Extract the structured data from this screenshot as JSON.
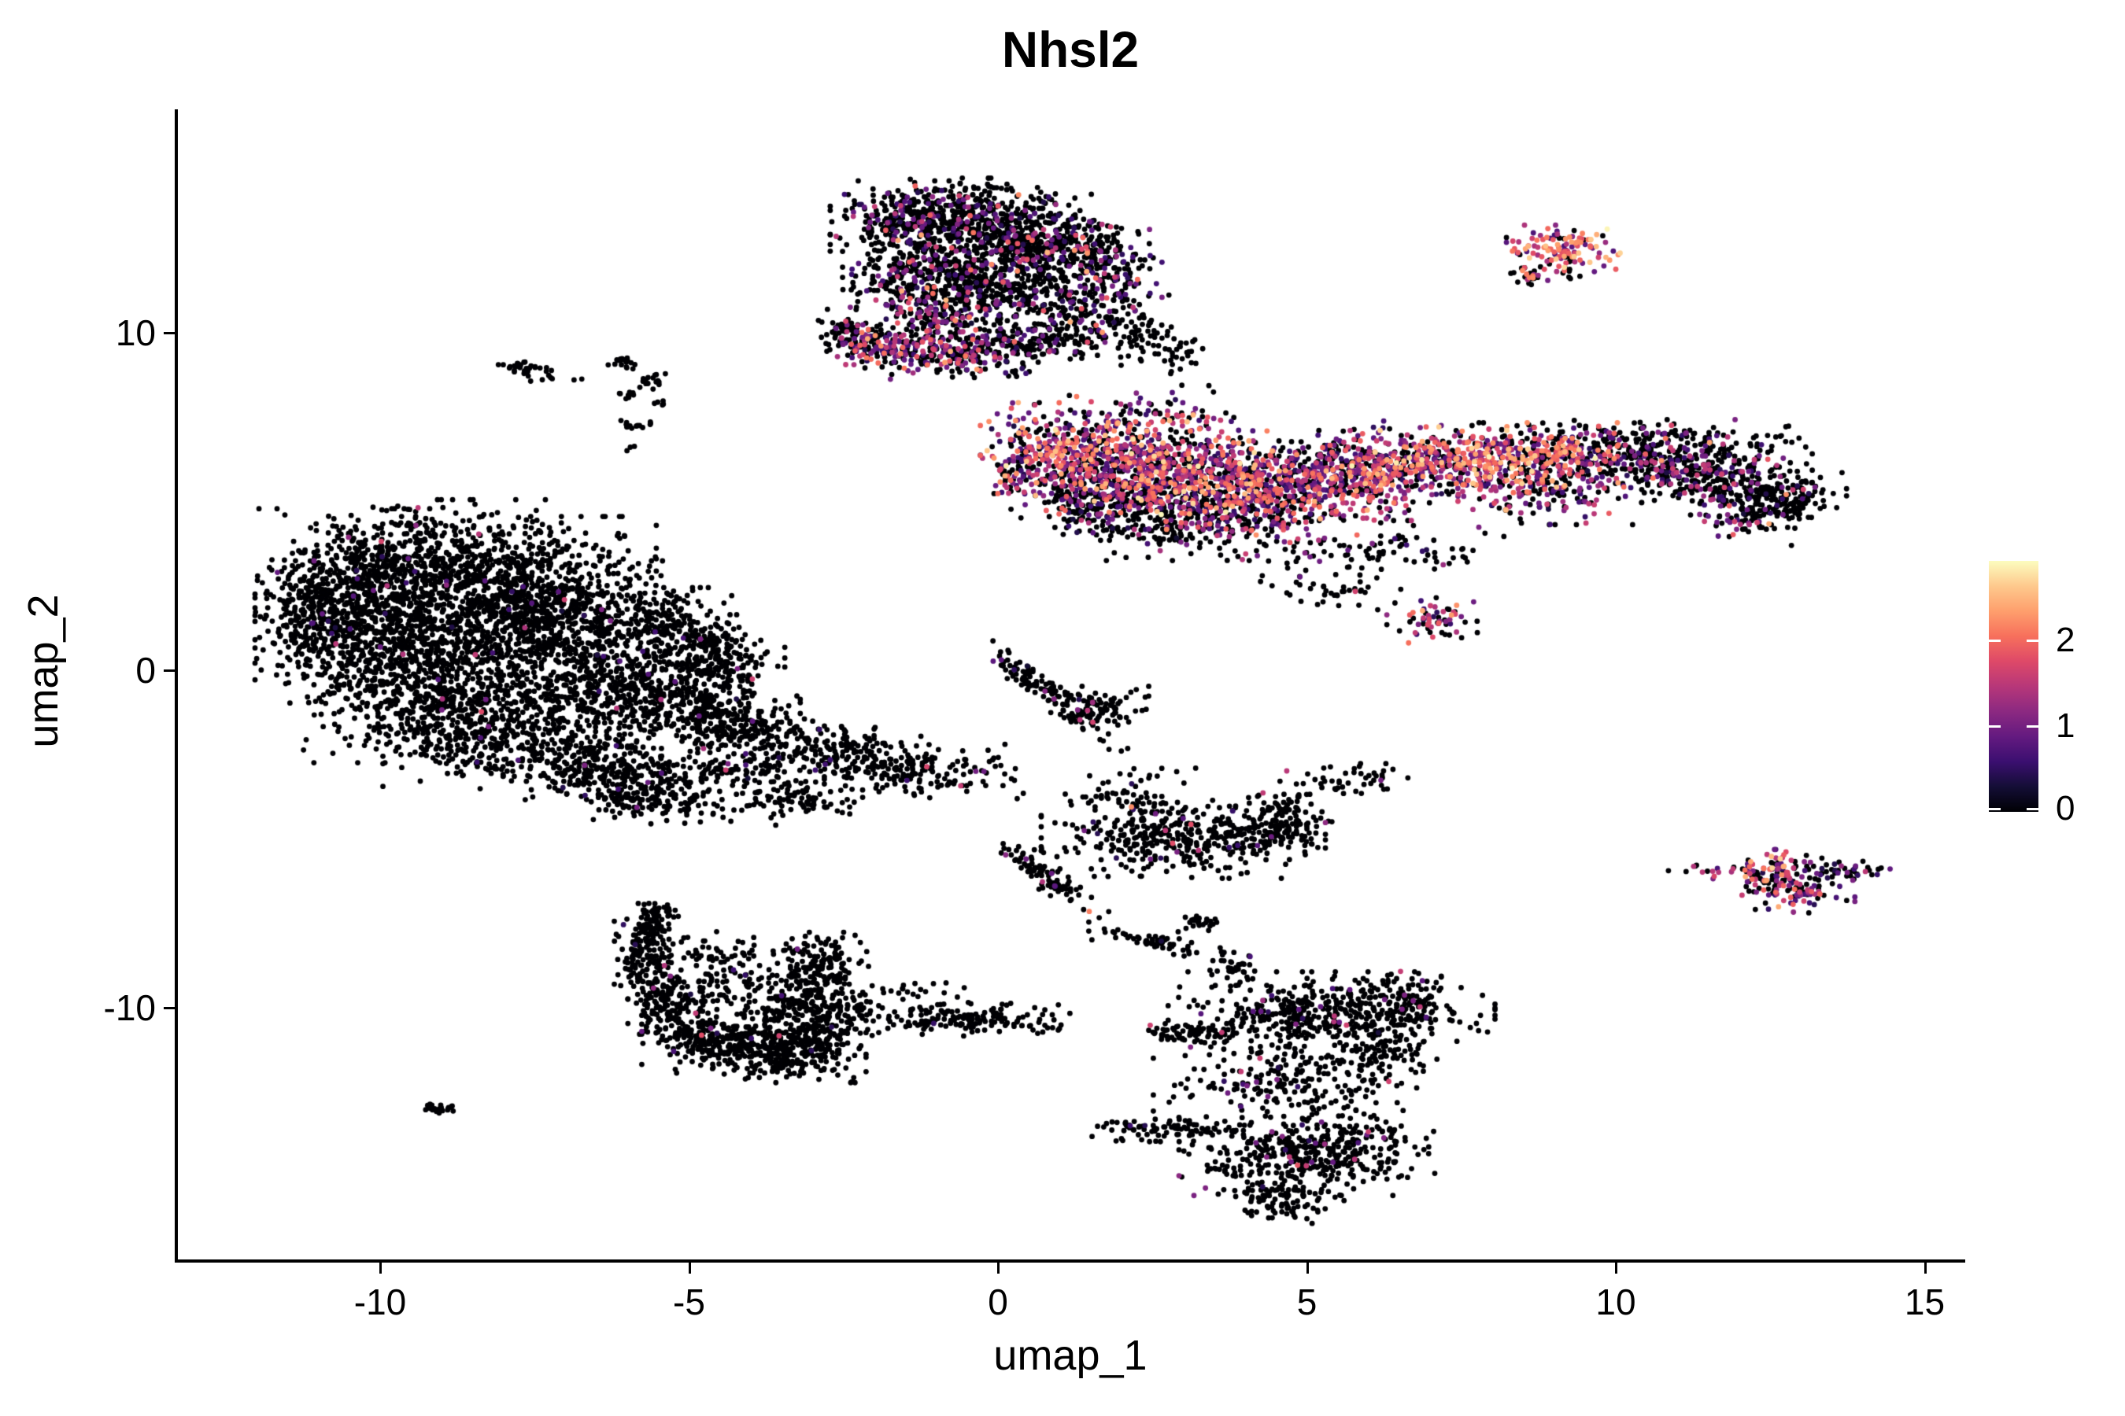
{
  "title": "Nhsl2",
  "axes": {
    "x": {
      "label": "umap_1",
      "ticks": [
        -10,
        -5,
        0,
        5,
        10,
        15
      ],
      "range": [
        -13.3,
        15.65
      ]
    },
    "y": {
      "label": "umap_2",
      "ticks": [
        10,
        0,
        -10
      ],
      "range": [
        -17.5,
        16.6
      ]
    }
  },
  "colorbar": {
    "ticks": [
      0,
      1,
      2
    ],
    "vmax": 2.92,
    "tick_color": "#ffffff",
    "stops": [
      [
        0.0,
        "#000004"
      ],
      [
        0.1,
        "#140E36"
      ],
      [
        0.2,
        "#3B0F70"
      ],
      [
        0.3,
        "#641A80"
      ],
      [
        0.4,
        "#8C2981"
      ],
      [
        0.5,
        "#B73779"
      ],
      [
        0.6,
        "#DE4968"
      ],
      [
        0.7,
        "#F7705C"
      ],
      [
        0.8,
        "#FE9F6D"
      ],
      [
        0.9,
        "#FEC98D"
      ],
      [
        1.0,
        "#FCFDBF"
      ]
    ]
  },
  "chart_data": {
    "type": "scatter",
    "title": "Nhsl2",
    "xlabel": "umap_1",
    "ylabel": "umap_2",
    "xlim": [
      -13.3,
      15.65
    ],
    "ylim": [
      -17.5,
      16.6
    ],
    "grid": false,
    "legend_position": "right",
    "point_radius_px": 3.4,
    "color_scale": {
      "name": "magma",
      "domain": [
        0,
        2.92
      ]
    },
    "representation": "gaussian_kernel_mixture",
    "expression_profiles": {
      "none": [
        [
          0,
          0.985
        ],
        [
          0.55,
          0.007
        ],
        [
          0.95,
          0.005
        ],
        [
          1.5,
          0.003
        ]
      ],
      "rare": [
        [
          0,
          0.945
        ],
        [
          0.55,
          0.02
        ],
        [
          1.0,
          0.02
        ],
        [
          1.6,
          0.01
        ],
        [
          2.1,
          0.005
        ]
      ],
      "low": [
        [
          0,
          0.78
        ],
        [
          0.55,
          0.08
        ],
        [
          0.95,
          0.08
        ],
        [
          1.45,
          0.04
        ],
        [
          1.9,
          0.015
        ],
        [
          2.3,
          0.005
        ]
      ],
      "mid": [
        [
          0,
          0.5
        ],
        [
          0.55,
          0.13
        ],
        [
          0.95,
          0.15
        ],
        [
          1.45,
          0.12
        ],
        [
          1.9,
          0.07
        ],
        [
          2.35,
          0.03
        ]
      ],
      "high": [
        [
          0,
          0.3
        ],
        [
          0.6,
          0.13
        ],
        [
          1.0,
          0.17
        ],
        [
          1.5,
          0.18
        ],
        [
          1.95,
          0.14
        ],
        [
          2.35,
          0.06
        ],
        [
          2.65,
          0.02
        ]
      ],
      "hot": [
        [
          0,
          0.14
        ],
        [
          0.8,
          0.1
        ],
        [
          1.3,
          0.16
        ],
        [
          1.8,
          0.26
        ],
        [
          2.2,
          0.24
        ],
        [
          2.6,
          0.1
        ]
      ],
      "darkhot": [
        [
          0,
          0.72
        ],
        [
          1.1,
          0.08
        ],
        [
          2.2,
          0.2
        ]
      ]
    },
    "clusters": [
      [
        -1.45,
        13.35,
        0.55,
        0.5,
        240,
        "low",
        0
      ],
      [
        -0.45,
        13.55,
        0.6,
        0.45,
        240,
        "low",
        0
      ],
      [
        0.55,
        12.9,
        0.6,
        0.6,
        260,
        "low",
        0
      ],
      [
        1.3,
        12.2,
        0.5,
        0.6,
        200,
        "low",
        0
      ],
      [
        -0.35,
        12.35,
        0.75,
        0.6,
        330,
        "low",
        0
      ],
      [
        -1.25,
        11.7,
        0.55,
        0.6,
        220,
        "low",
        0
      ],
      [
        -0.2,
        11.15,
        0.7,
        0.55,
        260,
        "low",
        0
      ],
      [
        -1.0,
        10.3,
        0.45,
        0.45,
        130,
        "mid",
        0
      ],
      [
        -2.4,
        9.95,
        0.22,
        0.35,
        80,
        "low",
        0
      ],
      [
        -1.85,
        9.6,
        0.4,
        0.3,
        110,
        "mid",
        0
      ],
      [
        -0.95,
        9.25,
        0.55,
        0.3,
        150,
        "mid",
        0
      ],
      [
        0.1,
        9.6,
        0.5,
        0.35,
        140,
        "low",
        0
      ],
      [
        1.0,
        10.2,
        0.45,
        0.5,
        150,
        "low",
        0
      ],
      [
        1.85,
        11.3,
        0.35,
        0.8,
        140,
        "low",
        0
      ],
      [
        2.3,
        10.0,
        0.25,
        0.5,
        50,
        "rare",
        0
      ],
      [
        2.9,
        9.3,
        0.18,
        0.3,
        30,
        "rare",
        0
      ],
      [
        0.75,
        6.55,
        0.45,
        0.6,
        200,
        "high",
        0
      ],
      [
        1.7,
        6.2,
        0.65,
        0.75,
        380,
        "high",
        0
      ],
      [
        2.7,
        5.9,
        0.65,
        0.75,
        400,
        "high",
        0
      ],
      [
        3.7,
        5.5,
        0.65,
        0.7,
        360,
        "high",
        0
      ],
      [
        4.7,
        5.3,
        0.65,
        0.65,
        300,
        "mid",
        0
      ],
      [
        3.1,
        4.4,
        0.85,
        0.5,
        250,
        "low",
        0
      ],
      [
        1.55,
        5.0,
        0.5,
        0.5,
        170,
        "low",
        0
      ],
      [
        5.7,
        5.7,
        0.7,
        0.55,
        250,
        "high",
        0
      ],
      [
        7.0,
        6.1,
        0.75,
        0.5,
        250,
        "high",
        0
      ],
      [
        8.3,
        6.3,
        0.75,
        0.45,
        240,
        "hot",
        0
      ],
      [
        9.5,
        6.35,
        0.7,
        0.4,
        210,
        "mid",
        0
      ],
      [
        10.7,
        6.1,
        0.7,
        0.4,
        200,
        "low",
        0
      ],
      [
        11.8,
        5.6,
        0.6,
        0.45,
        220,
        "low",
        0
      ],
      [
        12.7,
        5.1,
        0.45,
        0.4,
        160,
        "rare",
        0
      ],
      [
        6.1,
        3.5,
        1.1,
        0.35,
        90,
        "low",
        0
      ],
      [
        7.1,
        1.5,
        0.35,
        0.3,
        60,
        "mid",
        0
      ],
      [
        5.4,
        2.4,
        0.5,
        0.3,
        40,
        "rare",
        0
      ],
      [
        10.6,
        6.85,
        1.2,
        0.25,
        130,
        "low",
        0
      ],
      [
        12.1,
        4.35,
        0.4,
        0.3,
        50,
        "mid",
        0
      ],
      [
        8.9,
        5.35,
        0.8,
        0.45,
        160,
        "mid",
        0
      ],
      [
        6.3,
        6.35,
        0.5,
        0.45,
        140,
        "mid",
        0
      ],
      [
        2.5,
        7.6,
        0.8,
        0.4,
        60,
        "mid",
        0
      ],
      [
        0.3,
        5.6,
        0.25,
        0.4,
        50,
        "mid",
        0
      ],
      [
        9.15,
        12.5,
        0.4,
        0.3,
        120,
        "hot",
        0
      ],
      [
        8.6,
        11.7,
        0.13,
        0.15,
        22,
        "darkhot",
        0
      ],
      [
        9.0,
        11.9,
        0.3,
        0.2,
        12,
        "rare",
        0
      ],
      [
        12.6,
        -6.0,
        0.32,
        0.3,
        85,
        "high",
        0
      ],
      [
        12.95,
        -6.5,
        0.4,
        0.3,
        85,
        "mid",
        0
      ],
      [
        11.6,
        -5.95,
        0.5,
        0.1,
        22,
        "mid",
        0
      ],
      [
        13.75,
        -5.95,
        0.3,
        0.15,
        40,
        "low",
        0
      ],
      [
        -10.3,
        2.6,
        0.75,
        0.95,
        420,
        "none",
        0
      ],
      [
        -9.0,
        3.1,
        0.9,
        0.85,
        480,
        "none",
        0
      ],
      [
        -7.6,
        2.6,
        0.9,
        0.85,
        450,
        "none",
        0
      ],
      [
        -10.3,
        0.9,
        0.75,
        0.9,
        400,
        "none",
        0
      ],
      [
        -8.6,
        0.9,
        0.95,
        0.95,
        500,
        "none",
        0
      ],
      [
        -6.7,
        1.4,
        0.8,
        0.8,
        380,
        "none",
        0
      ],
      [
        -6.9,
        -0.4,
        0.9,
        0.8,
        380,
        "none",
        0
      ],
      [
        -9.4,
        -0.9,
        0.8,
        0.8,
        380,
        "none",
        0
      ],
      [
        -8.0,
        -1.9,
        0.85,
        0.7,
        350,
        "none",
        0
      ],
      [
        -6.4,
        -2.8,
        0.7,
        0.55,
        260,
        "none",
        0
      ],
      [
        -5.5,
        -0.9,
        0.6,
        0.7,
        250,
        "none",
        0
      ],
      [
        -4.6,
        0.15,
        0.5,
        0.65,
        240,
        "none",
        0
      ],
      [
        -5.6,
        -3.7,
        0.6,
        0.4,
        180,
        "none",
        0
      ],
      [
        -11.2,
        1.7,
        0.35,
        0.8,
        150,
        "none",
        0
      ],
      [
        -5.3,
        1.3,
        0.45,
        0.5,
        160,
        "none",
        0
      ],
      [
        -4.35,
        -1.4,
        0.5,
        0.4,
        150,
        "none",
        0
      ],
      [
        -3.5,
        -1.9,
        0.65,
        0.3,
        120,
        "none",
        0
      ],
      [
        -2.4,
        -2.5,
        0.7,
        0.35,
        150,
        "none",
        0
      ],
      [
        -1.2,
        -3.0,
        0.7,
        0.35,
        140,
        "rare",
        0
      ],
      [
        -4.3,
        -2.9,
        0.45,
        0.3,
        100,
        "none",
        0
      ],
      [
        -3.3,
        -3.9,
        0.5,
        0.3,
        90,
        "none",
        0
      ],
      [
        0.75,
        -0.6,
        0.95,
        0.13,
        130,
        "rare",
        -54
      ],
      [
        1.75,
        -1.05,
        0.3,
        0.25,
        70,
        "none",
        0
      ],
      [
        2.05,
        -3.7,
        0.5,
        0.4,
        60,
        "none",
        0
      ],
      [
        3.0,
        -4.9,
        1.0,
        0.55,
        400,
        "rare",
        0
      ],
      [
        4.6,
        -4.6,
        0.35,
        0.5,
        120,
        "none",
        0
      ],
      [
        0.85,
        -6.2,
        0.6,
        0.14,
        90,
        "rare",
        -53
      ],
      [
        5.6,
        -3.2,
        0.45,
        0.3,
        50,
        "rare",
        0
      ],
      [
        -5.6,
        -7.6,
        0.12,
        0.3,
        60,
        "none",
        0
      ],
      [
        -5.75,
        -8.6,
        0.2,
        0.55,
        130,
        "none",
        0
      ],
      [
        -5.3,
        -9.9,
        0.3,
        0.5,
        150,
        "none",
        0
      ],
      [
        -4.5,
        -10.9,
        0.55,
        0.45,
        260,
        "none",
        0
      ],
      [
        -3.4,
        -11.3,
        0.55,
        0.4,
        280,
        "none",
        0
      ],
      [
        -2.85,
        -10.3,
        0.4,
        0.55,
        220,
        "none",
        0
      ],
      [
        -2.9,
        -8.8,
        0.35,
        0.45,
        150,
        "none",
        0
      ],
      [
        -4.0,
        -9.4,
        0.6,
        0.5,
        120,
        "rare",
        0
      ],
      [
        -4.6,
        -8.4,
        0.4,
        0.3,
        50,
        "none",
        0
      ],
      [
        -5.45,
        -7.15,
        0.12,
        0.12,
        25,
        "none",
        0
      ],
      [
        -0.55,
        -10.35,
        0.75,
        0.22,
        150,
        "none",
        0
      ],
      [
        -2.1,
        -10.05,
        0.55,
        0.1,
        22,
        "none",
        0
      ],
      [
        -1.35,
        -9.5,
        0.45,
        0.12,
        20,
        "none",
        0
      ],
      [
        2.55,
        -8.05,
        0.5,
        0.13,
        60,
        "none",
        -20
      ],
      [
        3.25,
        -7.45,
        0.15,
        0.13,
        25,
        "none",
        0
      ],
      [
        3.8,
        -8.8,
        0.16,
        0.25,
        35,
        "none",
        0
      ],
      [
        5.4,
        -10.2,
        1.15,
        0.55,
        450,
        "rare",
        0
      ],
      [
        6.6,
        -9.7,
        0.25,
        0.35,
        70,
        "rare",
        0
      ],
      [
        3.25,
        -10.75,
        0.42,
        0.15,
        80,
        "none",
        0
      ],
      [
        4.7,
        -12.2,
        0.95,
        0.6,
        220,
        "rare",
        0
      ],
      [
        2.7,
        -13.6,
        0.6,
        0.16,
        90,
        "none",
        0
      ],
      [
        5.0,
        -14.3,
        0.9,
        0.55,
        430,
        "rare",
        0
      ],
      [
        4.6,
        -15.7,
        0.45,
        0.3,
        90,
        "none",
        0
      ],
      [
        6.3,
        -11.4,
        0.35,
        0.45,
        80,
        "none",
        0
      ],
      [
        -9.05,
        -12.95,
        0.2,
        0.08,
        25,
        "none",
        0
      ],
      [
        -7.6,
        8.9,
        0.22,
        0.1,
        30,
        "none",
        -25
      ],
      [
        -7.15,
        8.6,
        0.18,
        0.05,
        6,
        "none",
        0
      ],
      [
        -6.1,
        9.1,
        0.14,
        0.1,
        18,
        "none",
        0
      ],
      [
        -5.55,
        8.55,
        0.12,
        0.12,
        16,
        "none",
        0
      ],
      [
        -5.95,
        8.2,
        0.15,
        0.08,
        10,
        "none",
        0
      ],
      [
        -5.9,
        7.3,
        0.12,
        0.12,
        14,
        "none",
        0
      ],
      [
        -6.0,
        6.6,
        0.05,
        0.05,
        3,
        "none",
        0
      ],
      [
        -5.5,
        7.9,
        0.1,
        0.06,
        5,
        "none",
        0
      ]
    ]
  }
}
